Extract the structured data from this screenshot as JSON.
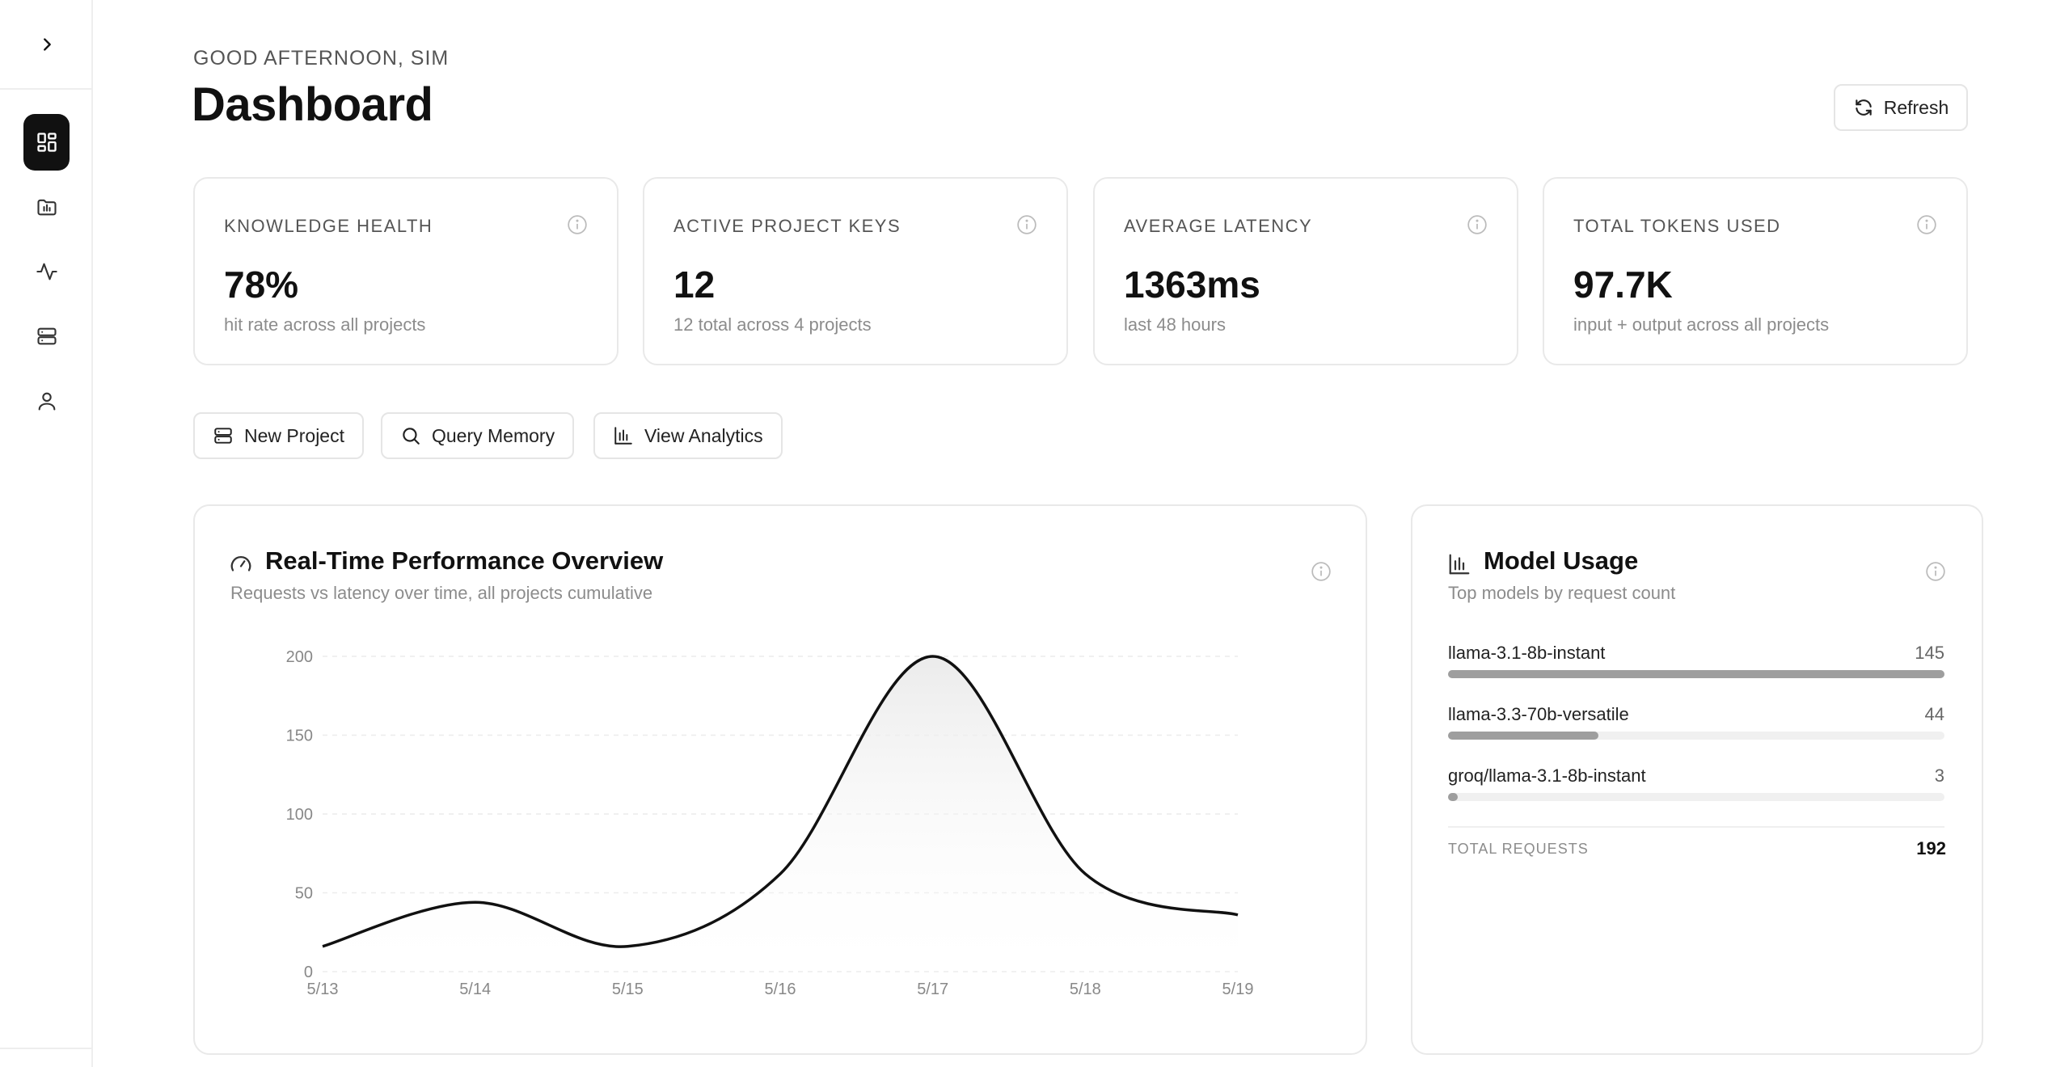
{
  "sidebar": {
    "toggle_icon": "chevron-right-icon",
    "items": [
      {
        "id": "dashboard",
        "icon": "dashboard-grid-icon",
        "active": true
      },
      {
        "id": "projects",
        "icon": "folder-chart-icon",
        "active": false
      },
      {
        "id": "activity",
        "icon": "activity-pulse-icon",
        "active": false
      },
      {
        "id": "storage",
        "icon": "server-icon",
        "active": false
      },
      {
        "id": "profile",
        "icon": "user-icon",
        "active": false
      }
    ]
  },
  "header": {
    "greeting": "GOOD AFTERNOON, SIM",
    "title": "Dashboard",
    "refresh_label": "Refresh"
  },
  "stats": [
    {
      "label": "KNOWLEDGE HEALTH",
      "value": "78%",
      "sub": "hit rate across all projects"
    },
    {
      "label": "ACTIVE PROJECT KEYS",
      "value": "12",
      "sub": "12 total across 4 projects"
    },
    {
      "label": "AVERAGE LATENCY",
      "value": "1363ms",
      "sub": "last 48 hours"
    },
    {
      "label": "TOTAL TOKENS USED",
      "value": "97.7K",
      "sub": "input + output across all projects"
    }
  ],
  "actions": [
    {
      "label": "New Project",
      "icon": "server-icon"
    },
    {
      "label": "Query Memory",
      "icon": "search-icon"
    },
    {
      "label": "View Analytics",
      "icon": "bar-chart-icon"
    }
  ],
  "performance": {
    "title": "Real-Time Performance Overview",
    "subtitle": "Requests vs latency over time, all projects cumulative",
    "icon": "gauge-icon"
  },
  "chart_data": {
    "type": "area",
    "title": "Real-Time Performance Overview",
    "x": [
      "5/13",
      "5/14",
      "5/15",
      "5/16",
      "5/17",
      "5/18",
      "5/19"
    ],
    "series": [
      {
        "values": [
          16,
          44,
          16,
          62,
          200,
          62,
          36
        ]
      }
    ],
    "ylim": [
      0,
      200
    ],
    "yticks": [
      0,
      50,
      100,
      150,
      200
    ],
    "grid": true,
    "line_color": "#111111"
  },
  "model_usage": {
    "title": "Model Usage",
    "subtitle": "Top models by request count",
    "icon": "bar-chart-icon",
    "models": [
      {
        "name": "llama-3.1-8b-instant",
        "count": "145",
        "share": 1.0
      },
      {
        "name": "llama-3.3-70b-versatile",
        "count": "44",
        "share": 0.303
      },
      {
        "name": "groq/llama-3.1-8b-instant",
        "count": "3",
        "share": 0.02
      }
    ],
    "total_label": "TOTAL REQUESTS",
    "total_value": "192"
  }
}
